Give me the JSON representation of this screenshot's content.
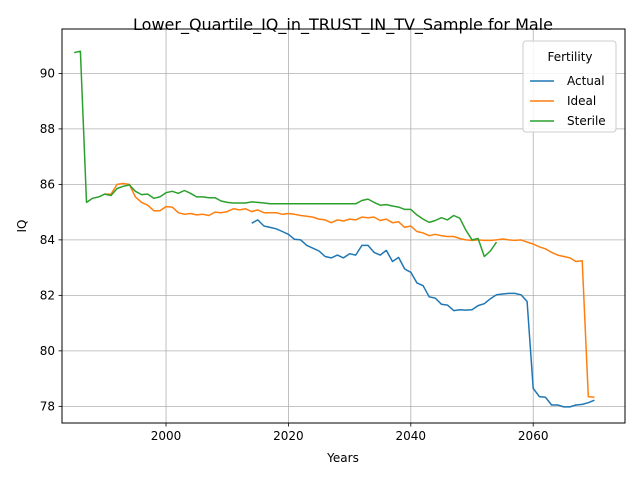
{
  "chart_data": {
    "type": "line",
    "title": "Lower_Quartile_IQ_in_TRUST_IN_TV_Sample for Male",
    "xlabel": "Years",
    "ylabel": "IQ",
    "xlim": [
      1983,
      2075
    ],
    "ylim": [
      77.4,
      91.6
    ],
    "xticks": [
      2000,
      2020,
      2040,
      2060
    ],
    "yticks": [
      78,
      80,
      82,
      84,
      86,
      88,
      90
    ],
    "grid": true,
    "legend": {
      "title": "Fertility",
      "placement": "top-right"
    },
    "series": [
      {
        "name": "Actual",
        "color": "#1f77b4",
        "points": [
          [
            2014,
            84.6
          ],
          [
            2015,
            84.72
          ],
          [
            2016,
            84.5
          ],
          [
            2017,
            84.45
          ],
          [
            2018,
            84.4
          ],
          [
            2019,
            84.3
          ],
          [
            2020,
            84.2
          ],
          [
            2021,
            84.02
          ],
          [
            2022,
            84.0
          ],
          [
            2023,
            83.8
          ],
          [
            2024,
            83.7
          ],
          [
            2025,
            83.6
          ],
          [
            2026,
            83.4
          ],
          [
            2027,
            83.35
          ],
          [
            2028,
            83.45
          ],
          [
            2029,
            83.35
          ],
          [
            2030,
            83.5
          ],
          [
            2031,
            83.45
          ],
          [
            2032,
            83.8
          ],
          [
            2033,
            83.8
          ],
          [
            2034,
            83.55
          ],
          [
            2035,
            83.45
          ],
          [
            2036,
            83.62
          ],
          [
            2037,
            83.22
          ],
          [
            2038,
            83.37
          ],
          [
            2039,
            82.95
          ],
          [
            2040,
            82.83
          ],
          [
            2041,
            82.45
          ],
          [
            2042,
            82.35
          ],
          [
            2043,
            81.95
          ],
          [
            2044,
            81.9
          ],
          [
            2045,
            81.68
          ],
          [
            2046,
            81.65
          ],
          [
            2047,
            81.45
          ],
          [
            2048,
            81.48
          ],
          [
            2049,
            81.47
          ],
          [
            2050,
            81.48
          ],
          [
            2051,
            81.63
          ],
          [
            2052,
            81.7
          ],
          [
            2053,
            81.88
          ],
          [
            2054,
            82.02
          ],
          [
            2055,
            82.05
          ],
          [
            2056,
            82.07
          ],
          [
            2057,
            82.07
          ],
          [
            2058,
            82.02
          ],
          [
            2059,
            81.78
          ],
          [
            2060,
            78.65
          ],
          [
            2061,
            78.35
          ],
          [
            2062,
            78.33
          ],
          [
            2063,
            78.05
          ],
          [
            2064,
            78.05
          ],
          [
            2065,
            77.98
          ],
          [
            2066,
            77.98
          ],
          [
            2067,
            78.05
          ],
          [
            2068,
            78.07
          ],
          [
            2069,
            78.13
          ],
          [
            2070,
            78.22
          ]
        ]
      },
      {
        "name": "Ideal",
        "color": "#ff7f0e",
        "points": [
          [
            1990,
            85.65
          ],
          [
            1991,
            85.65
          ],
          [
            1992,
            86.0
          ],
          [
            1993,
            86.03
          ],
          [
            1994,
            86.0
          ],
          [
            1995,
            85.55
          ],
          [
            1996,
            85.35
          ],
          [
            1997,
            85.25
          ],
          [
            1998,
            85.05
          ],
          [
            1999,
            85.05
          ],
          [
            2000,
            85.2
          ],
          [
            2001,
            85.18
          ],
          [
            2002,
            84.98
          ],
          [
            2003,
            84.92
          ],
          [
            2004,
            84.95
          ],
          [
            2005,
            84.9
          ],
          [
            2006,
            84.92
          ],
          [
            2007,
            84.88
          ],
          [
            2008,
            85.0
          ],
          [
            2009,
            84.98
          ],
          [
            2010,
            85.02
          ],
          [
            2011,
            85.12
          ],
          [
            2012,
            85.08
          ],
          [
            2013,
            85.12
          ],
          [
            2014,
            85.02
          ],
          [
            2015,
            85.08
          ],
          [
            2016,
            84.98
          ],
          [
            2017,
            84.98
          ],
          [
            2018,
            84.98
          ],
          [
            2019,
            84.92
          ],
          [
            2020,
            84.95
          ],
          [
            2021,
            84.92
          ],
          [
            2022,
            84.88
          ],
          [
            2023,
            84.85
          ],
          [
            2024,
            84.82
          ],
          [
            2025,
            84.75
          ],
          [
            2026,
            84.72
          ],
          [
            2027,
            84.62
          ],
          [
            2028,
            84.72
          ],
          [
            2029,
            84.68
          ],
          [
            2030,
            84.75
          ],
          [
            2031,
            84.72
          ],
          [
            2032,
            84.82
          ],
          [
            2033,
            84.8
          ],
          [
            2034,
            84.82
          ],
          [
            2035,
            84.7
          ],
          [
            2036,
            84.75
          ],
          [
            2037,
            84.62
          ],
          [
            2038,
            84.65
          ],
          [
            2039,
            84.45
          ],
          [
            2040,
            84.5
          ],
          [
            2041,
            84.3
          ],
          [
            2042,
            84.25
          ],
          [
            2043,
            84.15
          ],
          [
            2044,
            84.2
          ],
          [
            2045,
            84.15
          ],
          [
            2046,
            84.12
          ],
          [
            2047,
            84.12
          ],
          [
            2048,
            84.05
          ],
          [
            2049,
            84.0
          ],
          [
            2050,
            83.98
          ],
          [
            2051,
            84.0
          ],
          [
            2052,
            83.98
          ],
          [
            2053,
            83.98
          ],
          [
            2054,
            84.0
          ],
          [
            2055,
            84.03
          ],
          [
            2056,
            84.0
          ],
          [
            2057,
            83.98
          ],
          [
            2058,
            84.0
          ],
          [
            2059,
            83.92
          ],
          [
            2060,
            83.85
          ],
          [
            2061,
            83.75
          ],
          [
            2062,
            83.68
          ],
          [
            2063,
            83.55
          ],
          [
            2064,
            83.45
          ],
          [
            2065,
            83.4
          ],
          [
            2066,
            83.35
          ],
          [
            2067,
            83.22
          ],
          [
            2068,
            83.25
          ],
          [
            2069,
            78.35
          ],
          [
            2070,
            78.33
          ]
        ]
      },
      {
        "name": "Sterile",
        "color": "#2ca02c",
        "points": [
          [
            1985,
            90.75
          ],
          [
            1986,
            90.8
          ],
          [
            1987,
            85.35
          ],
          [
            1988,
            85.5
          ],
          [
            1989,
            85.55
          ],
          [
            1990,
            85.65
          ],
          [
            1991,
            85.6
          ],
          [
            1992,
            85.85
          ],
          [
            1993,
            85.93
          ],
          [
            1994,
            85.98
          ],
          [
            1995,
            85.75
          ],
          [
            1996,
            85.63
          ],
          [
            1997,
            85.65
          ],
          [
            1998,
            85.5
          ],
          [
            1999,
            85.55
          ],
          [
            2000,
            85.7
          ],
          [
            2001,
            85.75
          ],
          [
            2002,
            85.68
          ],
          [
            2003,
            85.78
          ],
          [
            2004,
            85.68
          ],
          [
            2005,
            85.55
          ],
          [
            2006,
            85.55
          ],
          [
            2007,
            85.52
          ],
          [
            2008,
            85.52
          ],
          [
            2009,
            85.4
          ],
          [
            2010,
            85.35
          ],
          [
            2011,
            85.33
          ],
          [
            2012,
            85.33
          ],
          [
            2013,
            85.33
          ],
          [
            2014,
            85.37
          ],
          [
            2015,
            85.35
          ],
          [
            2016,
            85.33
          ],
          [
            2017,
            85.3
          ],
          [
            2018,
            85.3
          ],
          [
            2019,
            85.3
          ],
          [
            2020,
            85.3
          ],
          [
            2021,
            85.3
          ],
          [
            2022,
            85.3
          ],
          [
            2023,
            85.3
          ],
          [
            2024,
            85.3
          ],
          [
            2025,
            85.3
          ],
          [
            2026,
            85.3
          ],
          [
            2027,
            85.3
          ],
          [
            2028,
            85.3
          ],
          [
            2029,
            85.3
          ],
          [
            2030,
            85.3
          ],
          [
            2031,
            85.3
          ],
          [
            2032,
            85.42
          ],
          [
            2033,
            85.47
          ],
          [
            2034,
            85.35
          ],
          [
            2035,
            85.25
          ],
          [
            2036,
            85.27
          ],
          [
            2037,
            85.22
          ],
          [
            2038,
            85.18
          ],
          [
            2039,
            85.1
          ],
          [
            2040,
            85.1
          ],
          [
            2041,
            84.9
          ],
          [
            2042,
            84.75
          ],
          [
            2043,
            84.63
          ],
          [
            2044,
            84.7
          ],
          [
            2045,
            84.8
          ],
          [
            2046,
            84.72
          ],
          [
            2047,
            84.88
          ],
          [
            2048,
            84.78
          ],
          [
            2049,
            84.35
          ],
          [
            2050,
            84.0
          ],
          [
            2051,
            84.05
          ],
          [
            2052,
            83.4
          ],
          [
            2053,
            83.6
          ],
          [
            2054,
            83.92
          ]
        ]
      }
    ]
  }
}
